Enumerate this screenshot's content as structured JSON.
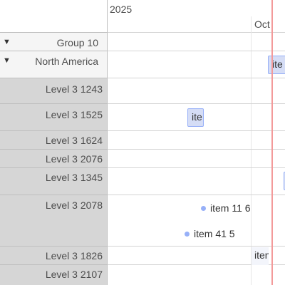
{
  "axis": {
    "year": "2025",
    "month": "Oct"
  },
  "groups": [
    {
      "label": "Group 10",
      "expanded_glyph": "▼"
    },
    {
      "label": "North America",
      "expanded_glyph": "▼"
    }
  ],
  "rows": [
    {
      "label": "Level 3 1243"
    },
    {
      "label": "Level 3 1525"
    },
    {
      "label": "Level 3 1624"
    },
    {
      "label": "Level 3 2076"
    },
    {
      "label": "Level 3 1345"
    },
    {
      "label": "Level 3 2078"
    },
    {
      "label": "Level 3 1826"
    },
    {
      "label": "Level 3 2107"
    }
  ],
  "items": {
    "north_america_range": "ite",
    "level_1525_range": "ite",
    "point_a": "item 11 6",
    "point_b": "item 41 5",
    "level_1826_range": "iten"
  },
  "colors": {
    "item_fill": "#d5ddf6",
    "item_border": "#97b0f8",
    "current_time": "#f39a9a",
    "level3_bg": "#d6d6d6",
    "group_bg": "#f5f5f5"
  }
}
